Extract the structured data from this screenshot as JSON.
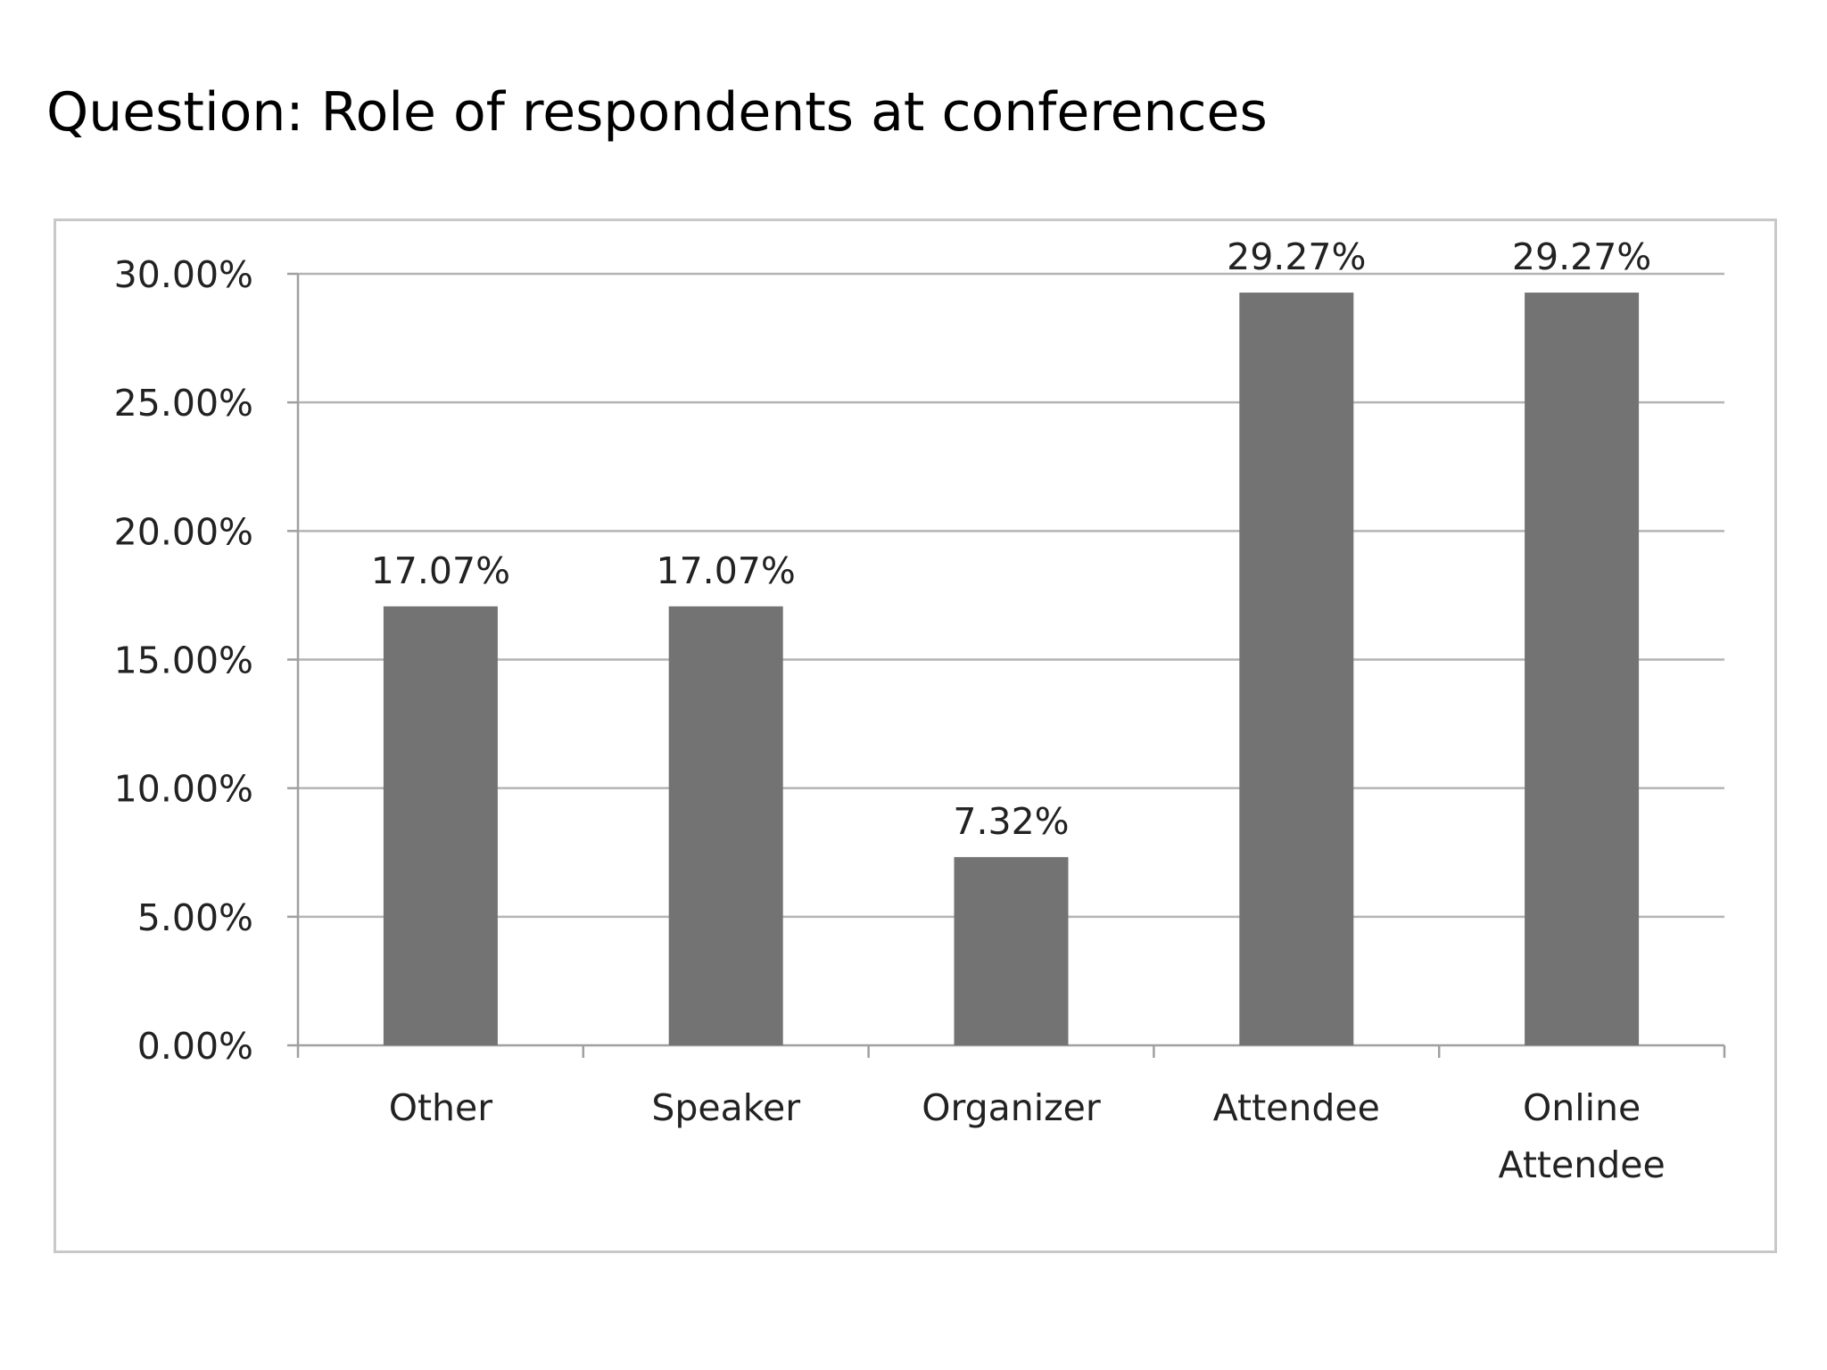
{
  "page": {
    "title": "Question: Role of respondents at conferences"
  },
  "chart_data": {
    "type": "bar",
    "categories": [
      "Other",
      "Speaker",
      "Organizer",
      "Attendee",
      "Online Attendee"
    ],
    "category_lines": [
      [
        "Other"
      ],
      [
        "Speaker"
      ],
      [
        "Organizer"
      ],
      [
        "Attendee"
      ],
      [
        "Online",
        "Attendee"
      ]
    ],
    "values": [
      17.07,
      17.07,
      7.32,
      29.27,
      29.27
    ],
    "value_labels": [
      "17.07%",
      "17.07%",
      "7.32%",
      "29.27%",
      "29.27%"
    ],
    "y_ticks": [
      0,
      5,
      10,
      15,
      20,
      25,
      30
    ],
    "y_tick_labels": [
      "0.00%",
      "5.00%",
      "10.00%",
      "15.00%",
      "20.00%",
      "25.00%",
      "30.00%"
    ],
    "ylim": [
      0,
      30
    ],
    "grid": true,
    "legend": "none",
    "colors": {
      "bar": "#737373",
      "grid": "#b4b4b4",
      "axis": "#a0a0a0"
    }
  }
}
